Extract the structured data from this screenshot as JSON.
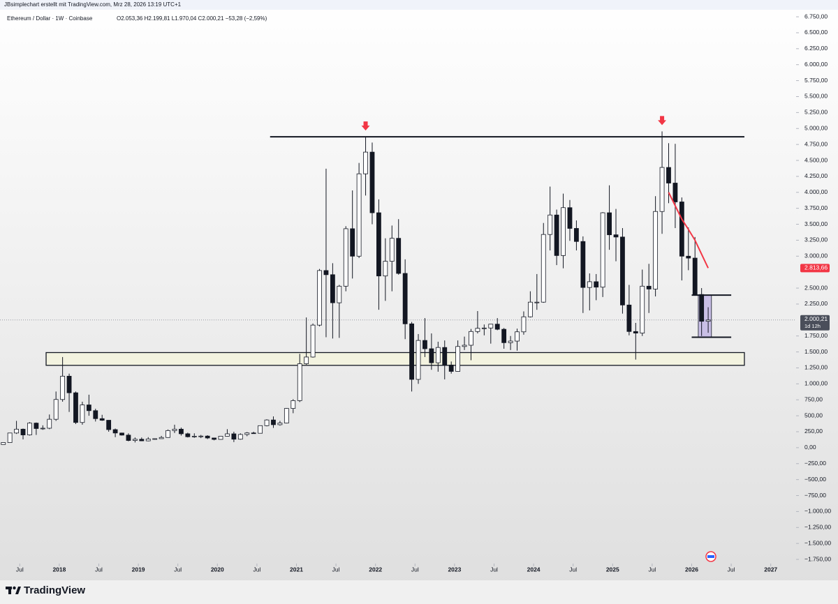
{
  "header": {
    "credit": "JBsimplechart erstellt mit TradingView.com, Mrz 28, 2026 13:19 UTC+1",
    "symbol": "Ethereum / Dollar · 1W · Coinbase",
    "ohlc_text": "O2.053,36 H2.199,81 L1.970,04 C2.000,21 −53,28 (−2,59%)"
  },
  "footer": {
    "brand": "TradingView"
  },
  "chart_data": {
    "type": "candlestick",
    "x": [
      "2017-04",
      "2017-05",
      "2017-06",
      "2017-07",
      "2017-08",
      "2017-09",
      "2017-10",
      "2017-11",
      "2017-12",
      "2018-01",
      "2018-02",
      "2018-03",
      "2018-04",
      "2018-05",
      "2018-06",
      "2018-07",
      "2018-08",
      "2018-09",
      "2018-10",
      "2018-11",
      "2018-12",
      "2019-01",
      "2019-02",
      "2019-03",
      "2019-04",
      "2019-05",
      "2019-06",
      "2019-07",
      "2019-08",
      "2019-09",
      "2019-10",
      "2019-11",
      "2019-12",
      "2020-01",
      "2020-02",
      "2020-03",
      "2020-04",
      "2020-05",
      "2020-06",
      "2020-07",
      "2020-08",
      "2020-09",
      "2020-10",
      "2020-11",
      "2020-12",
      "2021-01",
      "2021-02",
      "2021-03",
      "2021-04",
      "2021-05",
      "2021-06",
      "2021-07",
      "2021-08",
      "2021-09",
      "2021-10",
      "2021-11",
      "2021-12",
      "2022-01",
      "2022-02",
      "2022-03",
      "2022-04",
      "2022-05",
      "2022-06",
      "2022-07",
      "2022-08",
      "2022-09",
      "2022-10",
      "2022-11",
      "2022-12",
      "2023-01",
      "2023-02",
      "2023-03",
      "2023-04",
      "2023-05",
      "2023-06",
      "2023-07",
      "2023-08",
      "2023-09",
      "2023-10",
      "2023-11",
      "2023-12",
      "2024-01",
      "2024-02",
      "2024-03",
      "2024-04",
      "2024-05",
      "2024-06",
      "2024-07",
      "2024-08",
      "2024-09",
      "2024-10",
      "2024-11",
      "2024-12",
      "2025-01",
      "2025-02",
      "2025-03",
      "2025-04",
      "2025-05",
      "2025-06",
      "2025-07",
      "2025-08",
      "2025-09",
      "2025-10",
      "2025-11",
      "2025-12",
      "2026-01",
      "2026-02",
      "2026-03"
    ],
    "open": [
      50,
      80,
      230,
      290,
      200,
      385,
      300,
      305,
      445,
      755,
      1120,
      860,
      395,
      670,
      580,
      455,
      430,
      283,
      230,
      197,
      113,
      132,
      107,
      136,
      141,
      160,
      268,
      290,
      218,
      171,
      180,
      182,
      152,
      130,
      180,
      217,
      133,
      207,
      231,
      226,
      345,
      434,
      360,
      386,
      615,
      737,
      1315,
      1420,
      1920,
      2775,
      2710,
      2270,
      2530,
      3430,
      3000,
      4290,
      4630,
      3680,
      2690,
      2920,
      3280,
      2730,
      1940,
      1070,
      1680,
      1550,
      1330,
      1570,
      1295,
      1195,
      1585,
      1605,
      1820,
      1870,
      1875,
      1935,
      1855,
      1645,
      1670,
      1815,
      2050,
      2280,
      2280,
      3340,
      3645,
      3010,
      3760,
      3435,
      3230,
      2510,
      2600,
      2515,
      3680,
      3335,
      3300,
      2235,
      1820,
      1795,
      2530,
      2485,
      3700,
      4390,
      4145,
      3850,
      3000,
      2970,
      2400,
      1980
    ],
    "high": [
      80,
      230,
      420,
      300,
      400,
      395,
      350,
      520,
      880,
      1420,
      1160,
      880,
      720,
      830,
      610,
      515,
      430,
      300,
      235,
      225,
      160,
      160,
      165,
      145,
      185,
      285,
      360,
      315,
      235,
      225,
      200,
      195,
      155,
      185,
      290,
      250,
      225,
      245,
      250,
      345,
      445,
      490,
      420,
      620,
      760,
      1470,
      2040,
      1945,
      2800,
      4370,
      2890,
      2550,
      3470,
      4030,
      4460,
      4870,
      4780,
      3890,
      3280,
      3480,
      3580,
      2950,
      1970,
      1780,
      2030,
      1790,
      1660,
      1680,
      1350,
      1680,
      1740,
      1860,
      2140,
      1930,
      1935,
      2030,
      1875,
      1750,
      1865,
      2135,
      2450,
      2720,
      3520,
      4090,
      3730,
      3980,
      3880,
      3560,
      3310,
      2730,
      2720,
      3690,
      4110,
      3740,
      3440,
      2550,
      1955,
      2790,
      2880,
      3940,
      4955,
      4770,
      4760,
      3920,
      3450,
      3300,
      2500,
      2200
    ],
    "low": [
      48,
      78,
      215,
      130,
      190,
      200,
      280,
      290,
      420,
      720,
      560,
      370,
      360,
      500,
      410,
      420,
      250,
      165,
      190,
      100,
      82,
      102,
      100,
      125,
      140,
      155,
      230,
      190,
      160,
      155,
      150,
      135,
      115,
      125,
      175,
      88,
      125,
      180,
      220,
      223,
      335,
      310,
      345,
      380,
      540,
      715,
      1300,
      1410,
      1900,
      1730,
      1710,
      1720,
      2450,
      2650,
      2970,
      3950,
      3500,
      2160,
      2300,
      2450,
      2710,
      1700,
      880,
      1000,
      1420,
      1220,
      1190,
      1070,
      1160,
      1190,
      1530,
      1370,
      1790,
      1760,
      1630,
      1840,
      1550,
      1530,
      1520,
      1770,
      2040,
      2160,
      2270,
      3090,
      2860,
      2810,
      3240,
      3090,
      2110,
      2150,
      2310,
      2360,
      3100,
      2920,
      2100,
      1760,
      1380,
      1750,
      2110,
      2370,
      3350,
      3830,
      3440,
      2620,
      2780,
      2380,
      1750,
      1800
    ],
    "close": [
      80,
      230,
      290,
      200,
      385,
      300,
      305,
      445,
      755,
      1120,
      860,
      395,
      670,
      580,
      455,
      430,
      283,
      230,
      197,
      113,
      132,
      107,
      136,
      141,
      160,
      268,
      290,
      218,
      171,
      180,
      182,
      152,
      130,
      180,
      217,
      133,
      207,
      231,
      226,
      345,
      434,
      360,
      386,
      615,
      737,
      1315,
      1420,
      1920,
      2775,
      2710,
      2270,
      2530,
      3430,
      3000,
      4290,
      4630,
      3680,
      2690,
      2920,
      3280,
      2730,
      1940,
      1070,
      1680,
      1550,
      1330,
      1570,
      1295,
      1195,
      1585,
      1605,
      1820,
      1870,
      1875,
      1935,
      1855,
      1645,
      1670,
      1815,
      2050,
      2280,
      2280,
      3340,
      3645,
      3010,
      3760,
      3435,
      3230,
      2510,
      2600,
      2515,
      3680,
      3335,
      3300,
      2235,
      1820,
      1795,
      2530,
      2485,
      3700,
      4390,
      4145,
      3850,
      3000,
      2970,
      2400,
      1980,
      2000.21
    ],
    "up_color": "#ffffff",
    "down_color": "#131722",
    "wick_color": "#131722",
    "price_label": {
      "value": 2000.21,
      "label": "2.000,21",
      "countdown": "1d 12h"
    },
    "red_line": {
      "color": "#f23645",
      "x": [
        "2025-09",
        "2025-11",
        "2025-12",
        "2026-01",
        "2026-03"
      ],
      "values": [
        4000,
        3580,
        3420,
        3250,
        2813.66
      ],
      "end_label": "2.813,66"
    },
    "resistance": {
      "value": 4870,
      "x": [
        "2020-09",
        "2026-09"
      ]
    },
    "support_zone": {
      "values": [
        1290,
        1490
      ],
      "x": [
        "2017-11",
        "2026-09"
      ],
      "color": "#f3f3e0"
    },
    "range_box": {
      "values": [
        1730,
        2390
      ],
      "x": [
        "2026-01",
        "2026-07"
      ],
      "inner_x": [
        "2026-02",
        "2026-04"
      ],
      "color": "#c9bfe6"
    },
    "markers": [
      {
        "x": "2021-11",
        "color": "#f23645"
      },
      {
        "x": "2025-08",
        "color": "#f23645"
      }
    ],
    "xlim": [
      "2017-04",
      "2027-04"
    ],
    "xticks": [
      {
        "value": "2017-07",
        "label": "Jul"
      },
      {
        "value": "2018-01",
        "label": "2018"
      },
      {
        "value": "2018-07",
        "label": "Jul"
      },
      {
        "value": "2019-01",
        "label": "2019"
      },
      {
        "value": "2019-07",
        "label": "Jul"
      },
      {
        "value": "2020-01",
        "label": "2020"
      },
      {
        "value": "2020-07",
        "label": "Jul"
      },
      {
        "value": "2021-01",
        "label": "2021"
      },
      {
        "value": "2021-07",
        "label": "Jul"
      },
      {
        "value": "2022-01",
        "label": "2022"
      },
      {
        "value": "2022-07",
        "label": "Jul"
      },
      {
        "value": "2023-01",
        "label": "2023"
      },
      {
        "value": "2023-07",
        "label": "Jul"
      },
      {
        "value": "2024-01",
        "label": "2024"
      },
      {
        "value": "2024-07",
        "label": "Jul"
      },
      {
        "value": "2025-01",
        "label": "2025"
      },
      {
        "value": "2025-07",
        "label": "Jul"
      },
      {
        "value": "2026-01",
        "label": "2026"
      },
      {
        "value": "2026-07",
        "label": "Jul"
      },
      {
        "value": "2027-01",
        "label": "2027"
      }
    ],
    "ylim": [
      -1815,
      6860
    ],
    "yticks": [
      {
        "value": -1750,
        "label": "−1.750,00"
      },
      {
        "value": -1500,
        "label": "−1.500,00"
      },
      {
        "value": -1250,
        "label": "−1.250,00"
      },
      {
        "value": -1000,
        "label": "−1.000,00"
      },
      {
        "value": -750,
        "label": "−750,00"
      },
      {
        "value": -500,
        "label": "−500,00"
      },
      {
        "value": -250,
        "label": "−250,00"
      },
      {
        "value": 0,
        "label": "0,00"
      },
      {
        "value": 250,
        "label": "250,00"
      },
      {
        "value": 500,
        "label": "500,00"
      },
      {
        "value": 750,
        "label": "750,00"
      },
      {
        "value": 1000,
        "label": "1.000,00"
      },
      {
        "value": 1250,
        "label": "1.250,00"
      },
      {
        "value": 1500,
        "label": "1.500,00"
      },
      {
        "value": 1750,
        "label": "1.750,00"
      },
      {
        "value": 2250,
        "label": "2.250,00"
      },
      {
        "value": 2500,
        "label": "2.500,00"
      },
      {
        "value": 3000,
        "label": "3.000,00"
      },
      {
        "value": 3250,
        "label": "3.250,00"
      },
      {
        "value": 3500,
        "label": "3.500,00"
      },
      {
        "value": 3750,
        "label": "3.750,00"
      },
      {
        "value": 4000,
        "label": "4.000,00"
      },
      {
        "value": 4250,
        "label": "4.250,00"
      },
      {
        "value": 4500,
        "label": "4.500,00"
      },
      {
        "value": 4750,
        "label": "4.750,00"
      },
      {
        "value": 5000,
        "label": "5.000,00"
      },
      {
        "value": 5250,
        "label": "5.250,00"
      },
      {
        "value": 5500,
        "label": "5.500,00"
      },
      {
        "value": 5750,
        "label": "5.750,00"
      },
      {
        "value": 6000,
        "label": "6.000,00"
      },
      {
        "value": 6250,
        "label": "6.250,00"
      },
      {
        "value": 6500,
        "label": "6.500,00"
      },
      {
        "value": 6750,
        "label": "6.750,00"
      }
    ]
  }
}
